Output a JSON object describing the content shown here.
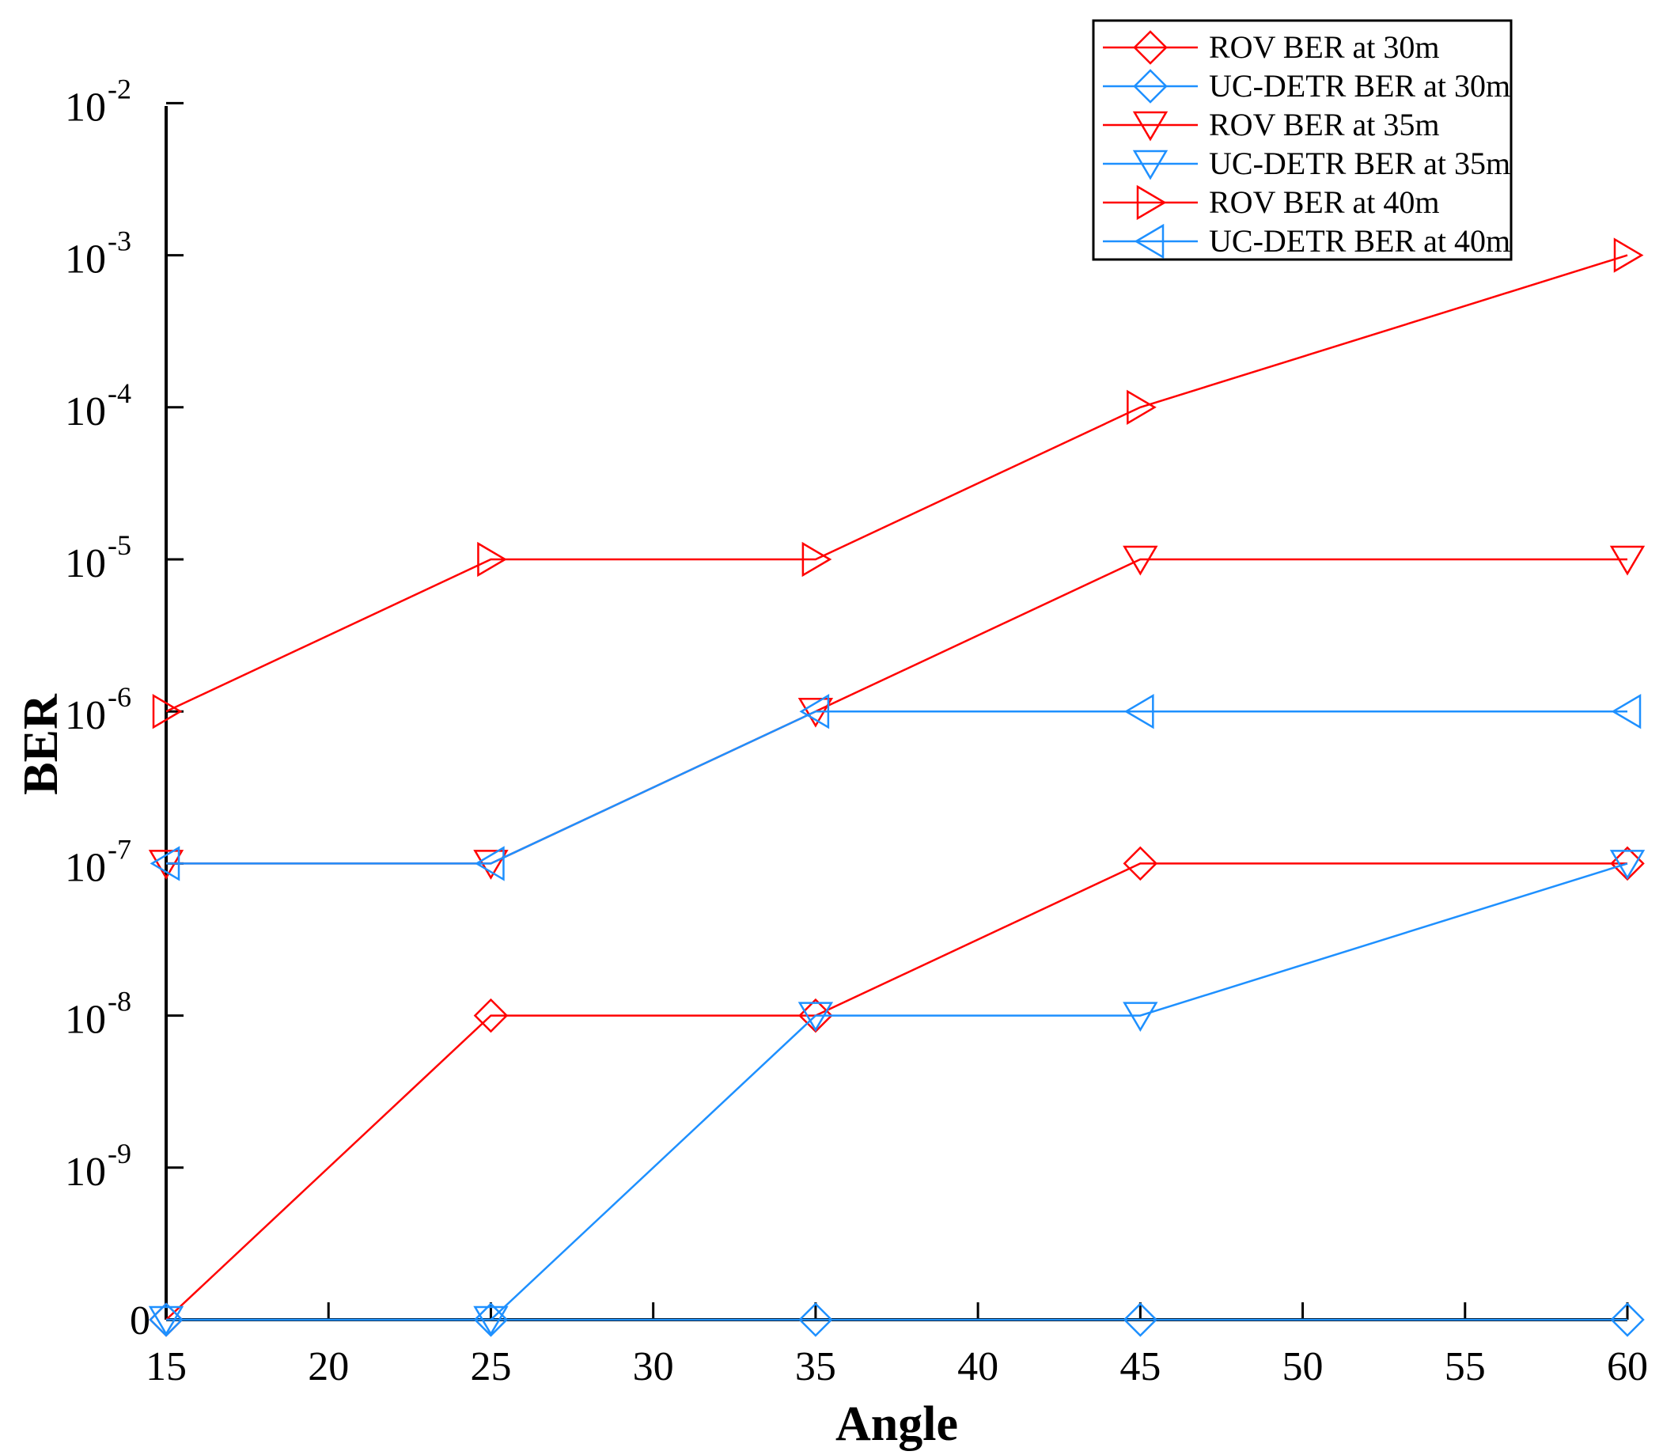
{
  "chart_data": {
    "type": "line",
    "xlabel": "Angle",
    "ylabel": "BER",
    "xlim": [
      15,
      60
    ],
    "xticks": [
      15,
      20,
      25,
      30,
      35,
      40,
      45,
      50,
      55,
      60
    ],
    "yscale": "log (bottom tick labeled 0)",
    "yticks": [
      {
        "base": "0",
        "exp": ""
      },
      {
        "base": "10",
        "exp": "-9"
      },
      {
        "base": "10",
        "exp": "-8"
      },
      {
        "base": "10",
        "exp": "-7"
      },
      {
        "base": "10",
        "exp": "-6"
      },
      {
        "base": "10",
        "exp": "-5"
      },
      {
        "base": "10",
        "exp": "-4"
      },
      {
        "base": "10",
        "exp": "-3"
      },
      {
        "base": "10",
        "exp": "-2"
      }
    ],
    "x": [
      15,
      25,
      35,
      45,
      60
    ],
    "legend_position": "top-right",
    "series": [
      {
        "name": "ROV BER at 30m",
        "color": "#ff0000",
        "marker": "diamond",
        "values": [
          0,
          1e-08,
          1e-08,
          1e-07,
          1e-07
        ]
      },
      {
        "name": "UC-DETR BER at 30m",
        "color": "#1e90ff",
        "marker": "diamond",
        "values": [
          0,
          0,
          0,
          0,
          0
        ]
      },
      {
        "name": "ROV BER at 35m",
        "color": "#ff0000",
        "marker": "triangle-down",
        "values": [
          1e-07,
          1e-07,
          1e-06,
          1e-05,
          1e-05
        ]
      },
      {
        "name": "UC-DETR BER at 35m",
        "color": "#1e90ff",
        "marker": "triangle-down",
        "values": [
          0,
          0,
          1e-08,
          1e-08,
          1e-07
        ]
      },
      {
        "name": "ROV BER at 40m",
        "color": "#ff0000",
        "marker": "triangle-right",
        "values": [
          1e-06,
          1e-05,
          1e-05,
          0.0001,
          0.001
        ]
      },
      {
        "name": "UC-DETR BER at 40m",
        "color": "#1e90ff",
        "marker": "triangle-left",
        "values": [
          1e-07,
          1e-07,
          1e-06,
          1e-06,
          1e-06
        ]
      }
    ]
  }
}
